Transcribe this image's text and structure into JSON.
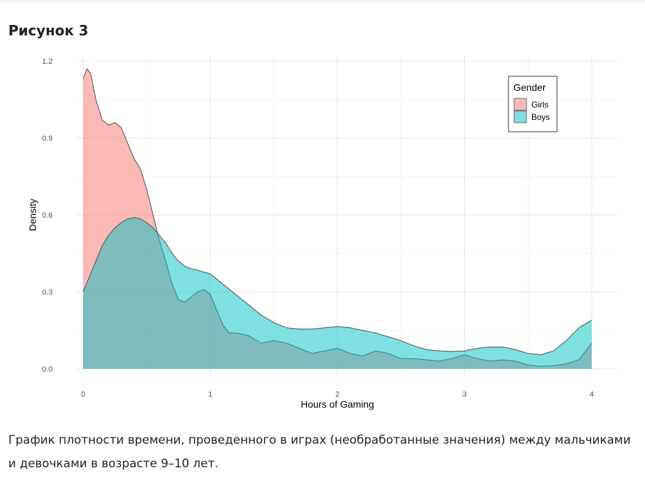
{
  "figure": {
    "title": "Рисунок 3",
    "caption": "График плотности времени, проведенного в играх (необработанные значения) между мальчиками и девочками в возрасте 9–10 лет."
  },
  "chart_data": {
    "type": "area",
    "xlabel": "Hours of Gaming",
    "ylabel": "Density",
    "xlim": [
      0,
      4
    ],
    "ylim": [
      0,
      1.2
    ],
    "x_ticks": [
      "0",
      "1",
      "2",
      "3",
      "4"
    ],
    "y_ticks": [
      "0.0",
      "0.3",
      "0.6",
      "0.9",
      "1.2"
    ],
    "grid": true,
    "legend": {
      "title": "Gender",
      "position": "top-right"
    },
    "series": [
      {
        "name": "Girls",
        "color": "#F8766D",
        "points": [
          [
            0,
            1.13
          ],
          [
            0.03,
            1.17
          ],
          [
            0.06,
            1.15
          ],
          [
            0.1,
            1.05
          ],
          [
            0.15,
            0.97
          ],
          [
            0.2,
            0.95
          ],
          [
            0.25,
            0.96
          ],
          [
            0.3,
            0.94
          ],
          [
            0.35,
            0.88
          ],
          [
            0.4,
            0.82
          ],
          [
            0.45,
            0.78
          ],
          [
            0.5,
            0.7
          ],
          [
            0.55,
            0.6
          ],
          [
            0.6,
            0.5
          ],
          [
            0.65,
            0.42
          ],
          [
            0.7,
            0.33
          ],
          [
            0.75,
            0.27
          ],
          [
            0.8,
            0.26
          ],
          [
            0.85,
            0.28
          ],
          [
            0.9,
            0.3
          ],
          [
            0.95,
            0.31
          ],
          [
            1.0,
            0.29
          ],
          [
            1.05,
            0.23
          ],
          [
            1.1,
            0.17
          ],
          [
            1.15,
            0.14
          ],
          [
            1.2,
            0.14
          ],
          [
            1.3,
            0.13
          ],
          [
            1.4,
            0.1
          ],
          [
            1.5,
            0.11
          ],
          [
            1.6,
            0.1
          ],
          [
            1.7,
            0.08
          ],
          [
            1.8,
            0.06
          ],
          [
            1.9,
            0.07
          ],
          [
            2.0,
            0.08
          ],
          [
            2.1,
            0.06
          ],
          [
            2.2,
            0.05
          ],
          [
            2.3,
            0.07
          ],
          [
            2.4,
            0.06
          ],
          [
            2.5,
            0.04
          ],
          [
            2.6,
            0.04
          ],
          [
            2.7,
            0.035
          ],
          [
            2.8,
            0.03
          ],
          [
            2.9,
            0.04
          ],
          [
            3.0,
            0.055
          ],
          [
            3.1,
            0.04
          ],
          [
            3.2,
            0.03
          ],
          [
            3.3,
            0.035
          ],
          [
            3.4,
            0.03
          ],
          [
            3.5,
            0.015
          ],
          [
            3.6,
            0.01
          ],
          [
            3.7,
            0.012
          ],
          [
            3.8,
            0.02
          ],
          [
            3.9,
            0.035
          ],
          [
            4.0,
            0.1
          ]
        ]
      },
      {
        "name": "Boys",
        "color": "#00BFC4",
        "points": [
          [
            0,
            0.3
          ],
          [
            0.05,
            0.36
          ],
          [
            0.1,
            0.42
          ],
          [
            0.15,
            0.48
          ],
          [
            0.2,
            0.52
          ],
          [
            0.25,
            0.55
          ],
          [
            0.3,
            0.57
          ],
          [
            0.35,
            0.585
          ],
          [
            0.4,
            0.59
          ],
          [
            0.45,
            0.585
          ],
          [
            0.5,
            0.57
          ],
          [
            0.55,
            0.55
          ],
          [
            0.6,
            0.52
          ],
          [
            0.65,
            0.49
          ],
          [
            0.7,
            0.45
          ],
          [
            0.75,
            0.42
          ],
          [
            0.8,
            0.4
          ],
          [
            0.85,
            0.39
          ],
          [
            0.9,
            0.385
          ],
          [
            1.0,
            0.37
          ],
          [
            1.1,
            0.33
          ],
          [
            1.2,
            0.29
          ],
          [
            1.3,
            0.25
          ],
          [
            1.4,
            0.21
          ],
          [
            1.5,
            0.18
          ],
          [
            1.6,
            0.16
          ],
          [
            1.7,
            0.155
          ],
          [
            1.8,
            0.155
          ],
          [
            1.9,
            0.16
          ],
          [
            2.0,
            0.165
          ],
          [
            2.1,
            0.16
          ],
          [
            2.2,
            0.15
          ],
          [
            2.3,
            0.14
          ],
          [
            2.4,
            0.125
          ],
          [
            2.5,
            0.11
          ],
          [
            2.6,
            0.09
          ],
          [
            2.7,
            0.075
          ],
          [
            2.8,
            0.07
          ],
          [
            2.9,
            0.068
          ],
          [
            3.0,
            0.07
          ],
          [
            3.1,
            0.08
          ],
          [
            3.2,
            0.085
          ],
          [
            3.3,
            0.085
          ],
          [
            3.4,
            0.075
          ],
          [
            3.5,
            0.06
          ],
          [
            3.6,
            0.055
          ],
          [
            3.7,
            0.07
          ],
          [
            3.8,
            0.11
          ],
          [
            3.9,
            0.16
          ],
          [
            4.0,
            0.19
          ]
        ]
      }
    ]
  }
}
